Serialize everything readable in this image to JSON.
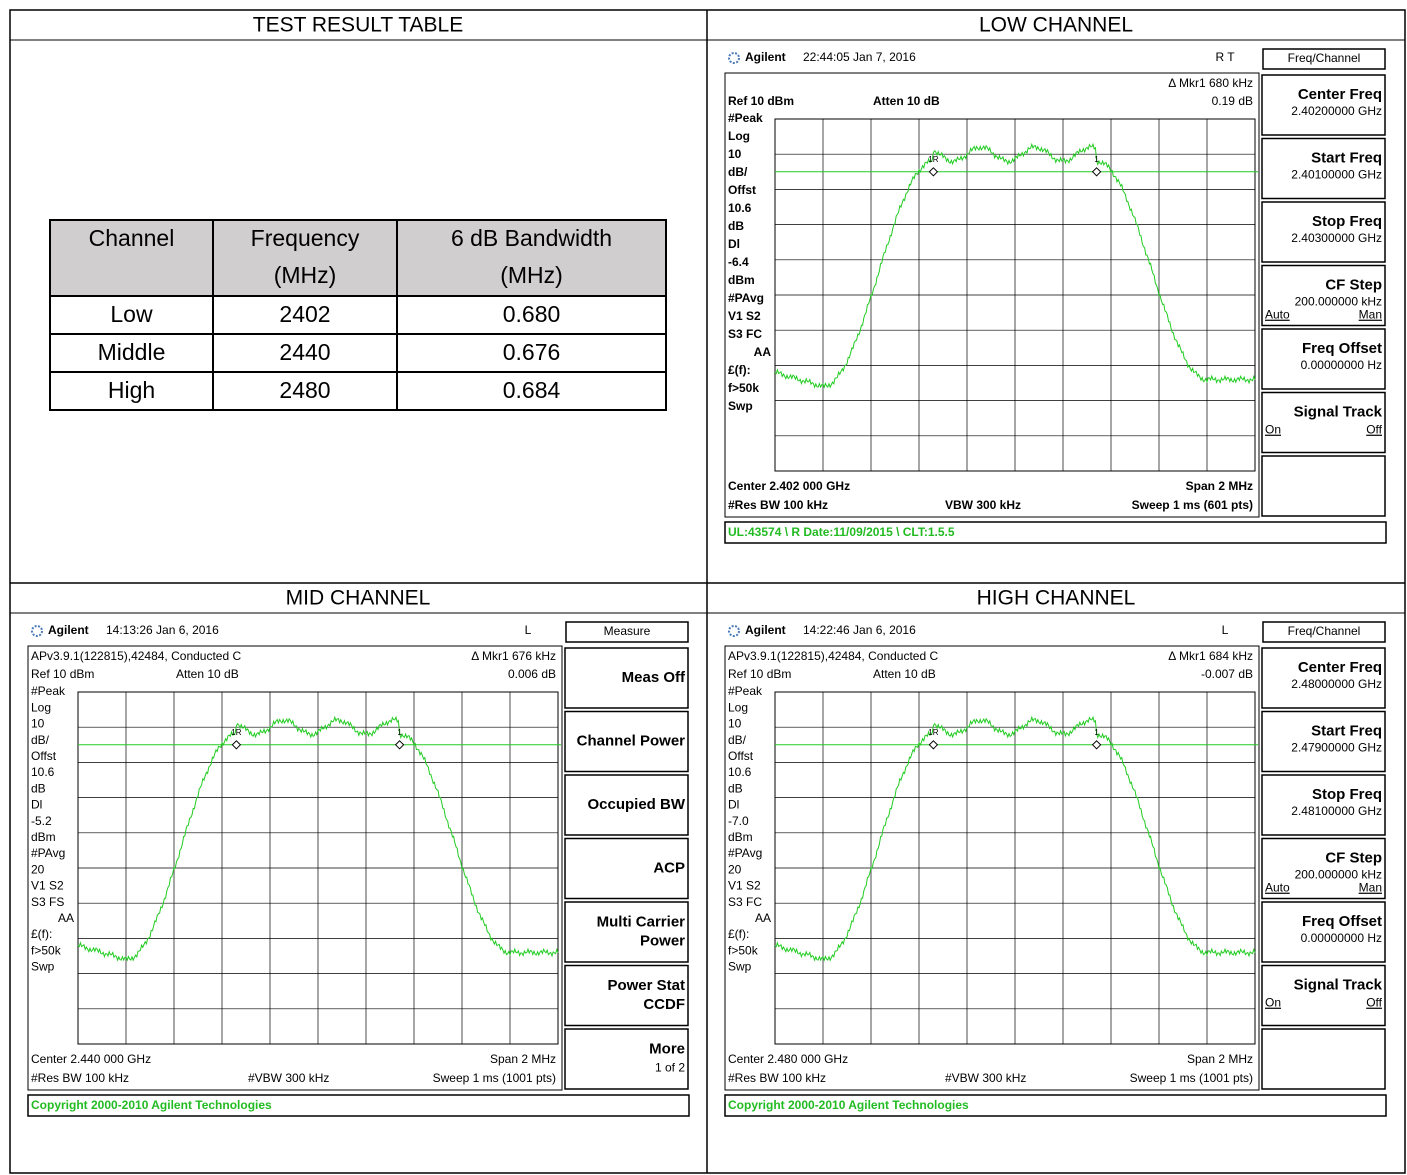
{
  "result": {
    "title": "TEST RESULT TABLE",
    "columns": [
      [
        "Channel"
      ],
      [
        "Frequency",
        "(MHz)"
      ],
      [
        "6 dB Bandwidth",
        "(MHz)"
      ]
    ],
    "rows": [
      [
        "Low",
        "2402",
        "0.680"
      ],
      [
        "Middle",
        "2440",
        "0.676"
      ],
      [
        "High",
        "2480",
        "0.684"
      ]
    ]
  },
  "panels": [
    {
      "title": "LOW CHANNEL",
      "header": {
        "brand": "Agilent",
        "time": "22:44:05  Jan 7, 2016",
        "status": "R   T"
      },
      "marker": "Δ Mkr1  680 kHz",
      "ref": "Ref 10 dBm",
      "atten": "Atten 10 dB",
      "marker_value": "0.19 dB",
      "left_labels": [
        "#Peak",
        "Log",
        "10",
        "dB/",
        "Offst",
        "10.6",
        "dB",
        "Dl",
        "-6.4",
        "dBm",
        "#PAvg",
        "V1  S2",
        "S3  FC",
        "AA",
        "£(f):",
        "f>50k",
        "Swp"
      ],
      "markers": [
        "1R",
        "1"
      ],
      "bottom": {
        "center": "Center 2.402 000 GHz",
        "span": "Span 2 MHz",
        "rbw": "#Res BW 100 kHz",
        "vbw": "VBW 300 kHz",
        "sweep": "Sweep 1 ms (601 pts)"
      },
      "footer": "UL:43574 \\ R Date:11/09/2015 \\ CLT:1.5.5",
      "menu": {
        "title": "Freq/Channel",
        "keys": [
          {
            "lines": [
              "Center Freq"
            ],
            "value": "2.40200000 GHz"
          },
          {
            "lines": [
              "Start Freq"
            ],
            "value": "2.40100000 GHz"
          },
          {
            "lines": [
              "Stop Freq"
            ],
            "value": "2.40300000 GHz"
          },
          {
            "lines": [
              "CF Step"
            ],
            "value": "200.000000 kHz",
            "left": "Auto",
            "right": "Man"
          },
          {
            "lines": [
              "Freq Offset"
            ],
            "value": "0.00000000  Hz"
          },
          {
            "lines": [
              "Signal Track"
            ],
            "left": "On",
            "right": "Off"
          }
        ]
      }
    },
    {
      "title": "MID CHANNEL",
      "header": {
        "brand": "Agilent",
        "time": "14:13:26  Jan 6, 2016",
        "status": "L"
      },
      "info": "APv3.9.1(122815),42484, Conducted C",
      "marker": "Δ Mkr1  676 kHz",
      "ref": "Ref 10 dBm",
      "atten": "Atten 10 dB",
      "marker_value": "0.006 dB",
      "left_labels": [
        "#Peak",
        "Log",
        "10",
        "dB/",
        "Offst",
        "10.6",
        "dB",
        "Dl",
        "-5.2",
        "dBm",
        "#PAvg",
        "20",
        "V1  S2",
        "S3  FS",
        "AA",
        "£(f):",
        "f>50k",
        "Swp"
      ],
      "markers": [
        "1R",
        "1"
      ],
      "bottom": {
        "center": "Center 2.440 000 GHz",
        "span": "Span 2 MHz",
        "rbw": "#Res BW 100 kHz",
        "vbw": "#VBW 300 kHz",
        "sweep": "Sweep 1 ms (1001 pts)"
      },
      "footer": "Copyright 2000-2010 Agilent Technologies",
      "menu": {
        "title": "Measure",
        "keys": [
          {
            "lines": [
              "Meas Off"
            ]
          },
          {
            "lines": [
              "Channel Power"
            ]
          },
          {
            "lines": [
              "Occupied BW"
            ]
          },
          {
            "lines": [
              "ACP"
            ]
          },
          {
            "lines": [
              "Multi Carrier",
              "Power"
            ]
          },
          {
            "lines": [
              "Power Stat",
              "CCDF"
            ]
          },
          {
            "lines": [
              "More",
              "1 of 2"
            ]
          }
        ]
      }
    },
    {
      "title": "HIGH CHANNEL",
      "header": {
        "brand": "Agilent",
        "time": "14:22:46  Jan 6, 2016",
        "status": "L"
      },
      "info": "APv3.9.1(122815),42484, Conducted C",
      "marker": "Δ Mkr1  684 kHz",
      "ref": "Ref 10 dBm",
      "atten": "Atten 10 dB",
      "marker_value": "-0.007 dB",
      "left_labels": [
        "#Peak",
        "Log",
        "10",
        "dB/",
        "Offst",
        "10.6",
        "dB",
        "Dl",
        "-7.0",
        "dBm",
        "#PAvg",
        "20",
        "V1  S2",
        "S3  FC",
        "AA",
        "£(f):",
        "f>50k",
        "Swp"
      ],
      "markers": [
        "1R",
        "1"
      ],
      "bottom": {
        "center": "Center 2.480 000 GHz",
        "span": "Span 2 MHz",
        "rbw": "#Res BW 100 kHz",
        "vbw": "#VBW 300 kHz",
        "sweep": "Sweep 1 ms (1001 pts)"
      },
      "footer": "Copyright 2000-2010 Agilent Technologies",
      "menu": {
        "title": "Freq/Channel",
        "keys": [
          {
            "lines": [
              "Center Freq"
            ],
            "value": "2.48000000 GHz"
          },
          {
            "lines": [
              "Start Freq"
            ],
            "value": "2.47900000 GHz"
          },
          {
            "lines": [
              "Stop Freq"
            ],
            "value": "2.48100000 GHz"
          },
          {
            "lines": [
              "CF Step"
            ],
            "value": "200.000000 kHz",
            "left": "Auto",
            "right": "Man"
          },
          {
            "lines": [
              "Freq Offset"
            ],
            "value": "0.00000000  Hz"
          },
          {
            "lines": [
              "Signal Track"
            ],
            "left": "On",
            "right": "Off"
          }
        ]
      }
    }
  ]
}
